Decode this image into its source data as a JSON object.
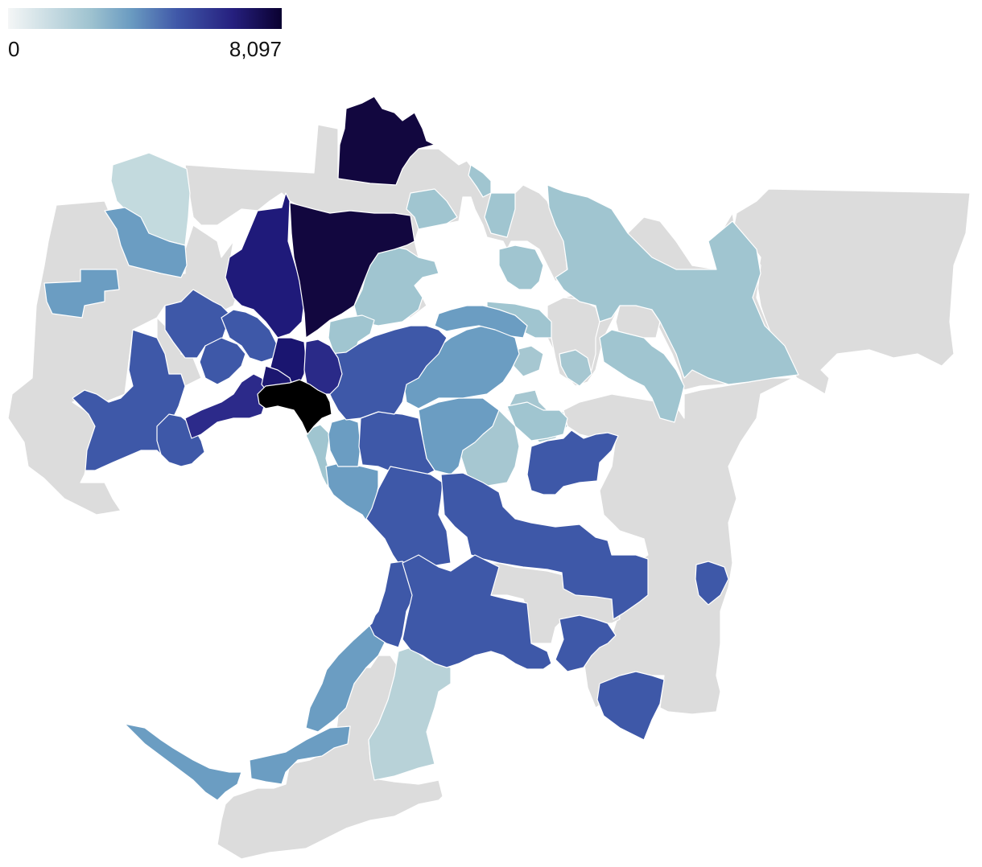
{
  "legend": {
    "min_label": "0",
    "max_label": "8,097",
    "min_value": 0,
    "max_value": 8097,
    "colors": [
      "#f4f6f6",
      "#9fc3d0",
      "#6a9bc1",
      "#3f57a8",
      "#26207f",
      "#0a0030"
    ]
  },
  "no_data_color": "#dcdcdc",
  "background_color": "#ffffff"
}
